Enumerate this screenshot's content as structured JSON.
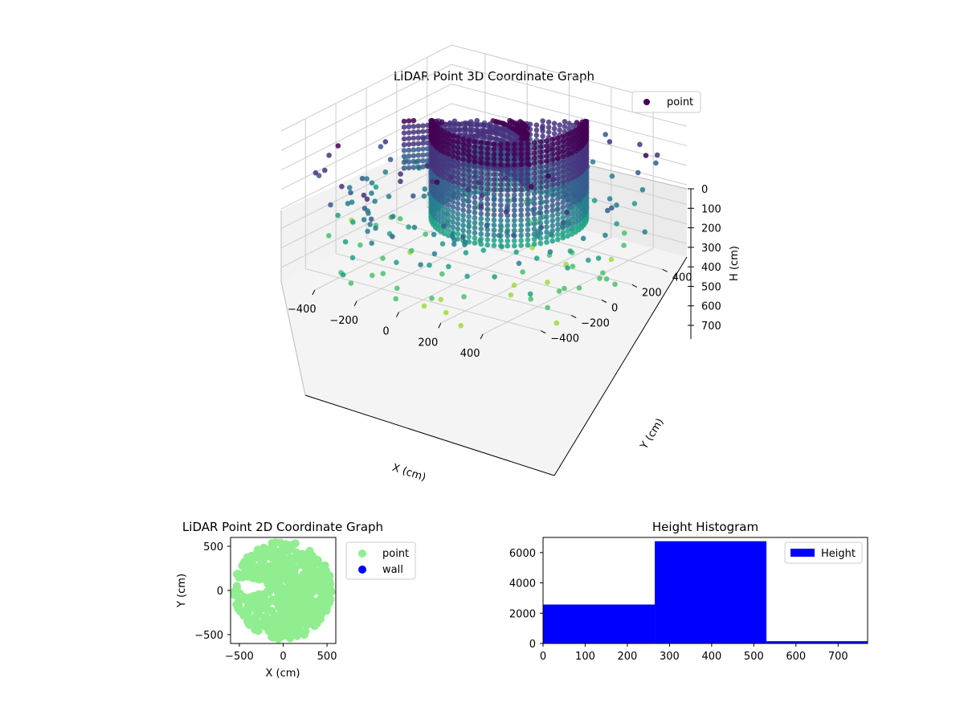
{
  "colors": {
    "cmap": [
      "#440154",
      "#46327e",
      "#365c8d",
      "#277f8e",
      "#1fa187",
      "#4ac16d",
      "#a0da39",
      "#fde725"
    ],
    "point_2d": "#90ee90",
    "wall_2d": "#0000ff",
    "histogram": "#0000ff",
    "pane": "#f2f2f2",
    "grid": "#cccccc"
  },
  "chart_data": [
    {
      "type": "scatter",
      "projection": "3d",
      "title": "LiDAR Point 3D Coordinate Graph",
      "xlabel": "X (cm)",
      "ylabel": "Y (cm)",
      "zlabel": "H (cm)",
      "xlim": [
        -560,
        560
      ],
      "ylim": [
        -560,
        560
      ],
      "zlim": [
        770,
        0
      ],
      "xticks": [
        "−400",
        "−200",
        "0",
        "200",
        "400"
      ],
      "yticks": [
        "−400",
        "−200",
        "0",
        "200",
        "400"
      ],
      "zticks": [
        "0",
        "100",
        "200",
        "300",
        "400",
        "500",
        "600",
        "700"
      ],
      "z_axis_inverted": true,
      "colormap": "viridis (by height)",
      "legend": [
        "point"
      ],
      "legend_position": "upper-right",
      "structures": [
        {
          "kind": "cylindrical wall",
          "center": [
            60,
            80
          ],
          "radius": 300,
          "h_range": [
            0,
            520
          ]
        },
        {
          "kind": "curved wall",
          "from_xy": [
            -380,
            0
          ],
          "to_xy": [
            120,
            120
          ],
          "h_range": [
            60,
            360
          ]
        },
        {
          "kind": "spiral rail",
          "center": [
            0,
            80
          ],
          "radius": 120,
          "h_range": [
            100,
            300
          ]
        }
      ],
      "outliers_h_range": [
        100,
        770
      ]
    },
    {
      "type": "scatter",
      "title": "LiDAR Point 2D Coordinate Graph",
      "xlabel": "X (cm)",
      "ylabel": "Y (cm)",
      "xlim": [
        -600,
        600
      ],
      "ylim": [
        -600,
        600
      ],
      "xticks": [
        "−500",
        "0",
        "500"
      ],
      "yticks": [
        "−500",
        "0",
        "500"
      ],
      "series": [
        {
          "name": "point",
          "description": "dense disk of points, radius ~500 cm around origin"
        },
        {
          "name": "wall",
          "values": []
        }
      ],
      "legend_position": "outside-right"
    },
    {
      "type": "bar",
      "title": "Height Histogram",
      "xlim": [
        0,
        770
      ],
      "ylim": [
        0,
        7000
      ],
      "xticks": [
        "0",
        "100",
        "200",
        "300",
        "400",
        "500",
        "600",
        "700"
      ],
      "yticks": [
        "0",
        "2000",
        "4000",
        "6000"
      ],
      "bins": [
        {
          "from": 0,
          "to": 265,
          "count": 2570
        },
        {
          "from": 265,
          "to": 530,
          "count": 6750
        },
        {
          "from": 530,
          "to": 770,
          "count": 150
        }
      ],
      "series": [
        {
          "name": "Height"
        }
      ],
      "legend_position": "upper-right"
    }
  ]
}
